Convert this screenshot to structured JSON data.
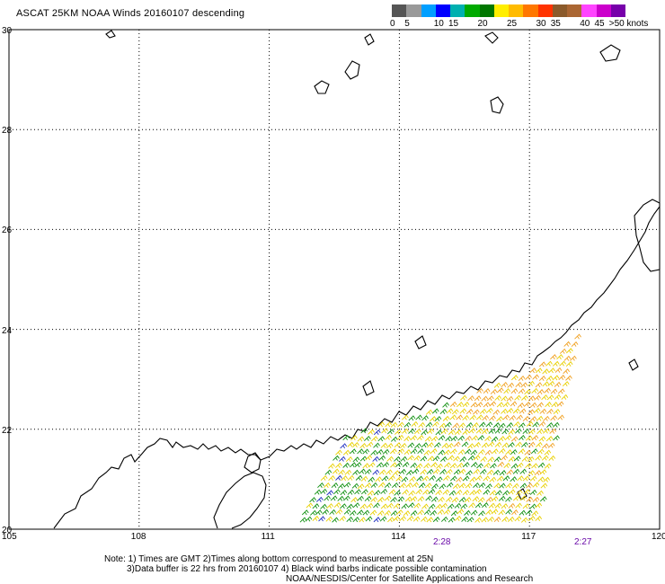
{
  "title": "ASCAT 25KM NOAA Winds 20160107 descending",
  "legend": {
    "items": [
      {
        "label": "0",
        "color": "#555555"
      },
      {
        "label": "5",
        "color": "#999999"
      },
      {
        "label": "",
        "color": "#009fff"
      },
      {
        "label": "10",
        "color": "#0000ff"
      },
      {
        "label": "15",
        "color": "#00b0b0"
      },
      {
        "label": "",
        "color": "#00aa00"
      },
      {
        "label": "20",
        "color": "#007700"
      },
      {
        "label": "",
        "color": "#ffee00"
      },
      {
        "label": "25",
        "color": "#ffbb00"
      },
      {
        "label": "",
        "color": "#ff7700"
      },
      {
        "label": "30",
        "color": "#ff3300"
      },
      {
        "label": "35",
        "color": "#8b5a2b"
      },
      {
        "label": "",
        "color": "#aa6633"
      },
      {
        "label": "40",
        "color": "#ff44ff"
      },
      {
        "label": "45",
        "color": "#cc00cc"
      },
      {
        "label": ">50 knots",
        "color": "#7700aa"
      }
    ]
  },
  "axes": {
    "lat_labels": [
      "30",
      "28",
      "26",
      "24",
      "22",
      "20"
    ],
    "lon_labels": [
      "105",
      "108",
      "111",
      "114",
      "117",
      "120"
    ]
  },
  "pass_times": [
    "2:28",
    "2:27"
  ],
  "notes": {
    "line1": "Note: 1) Times are GMT 2)Times along bottom correspond to measurement at 25N",
    "line2": "3)Data buffer is 22 hrs from 20160107 4) Black wind barbs indicate possible contamination",
    "line3": "NOAA/NESDIS/Center for Satellite Applications and Research"
  },
  "colors": {
    "wind_yellow": "#e8d000",
    "wind_orange": "#f0a020",
    "wind_green": "#109010",
    "wind_blue": "#2030c0",
    "time_purple": "#6a0aa8"
  }
}
